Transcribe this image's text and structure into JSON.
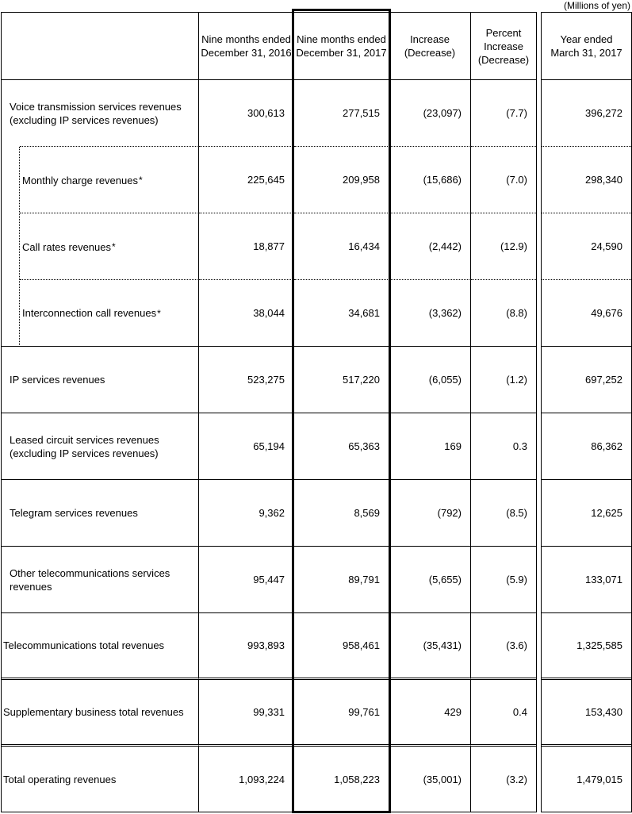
{
  "units_note": "(Millions of yen)",
  "colors": {
    "background": "#ffffff",
    "text": "#000000",
    "border": "#000000"
  },
  "table": {
    "columns": [
      {
        "lines": [
          "Nine months ended",
          "December 31, 2016"
        ]
      },
      {
        "lines": [
          "Nine months ended",
          "December 31, 2017"
        ]
      },
      {
        "lines": [
          "Increase",
          "(Decrease)"
        ]
      },
      {
        "lines": [
          "Percent",
          "Increase",
          "(Decrease)"
        ]
      },
      {
        "lines": [
          "Year ended",
          "March 31, 2017"
        ]
      }
    ],
    "rows": [
      {
        "label": "Voice transmission services revenues (excluding IP services revenues)",
        "values": [
          "300,613",
          "277,515",
          "(23,097)",
          "(7.7)",
          "396,272"
        ]
      },
      {
        "label": "Monthly charge revenues",
        "note": "*",
        "values": [
          "225,645",
          "209,958",
          "(15,686)",
          "(7.0)",
          "298,340"
        ]
      },
      {
        "label": "Call rates revenues",
        "note": "*",
        "values": [
          "18,877",
          "16,434",
          "(2,442)",
          "(12.9)",
          "24,590"
        ]
      },
      {
        "label": "Interconnection call revenues",
        "note": "*",
        "values": [
          "38,044",
          "34,681",
          "(3,362)",
          "(8.8)",
          "49,676"
        ]
      },
      {
        "label": "IP services revenues",
        "values": [
          "523,275",
          "517,220",
          "(6,055)",
          "(1.2)",
          "697,252"
        ]
      },
      {
        "label": "Leased circuit services revenues (excluding IP services revenues)",
        "values": [
          "65,194",
          "65,363",
          "169",
          "0.3",
          "86,362"
        ]
      },
      {
        "label": "Telegram services revenues",
        "values": [
          "9,362",
          "8,569",
          "(792)",
          "(8.5)",
          "12,625"
        ]
      },
      {
        "label": "Other telecommunications services revenues",
        "values": [
          "95,447",
          "89,791",
          "(5,655)",
          "(5.9)",
          "133,071"
        ]
      },
      {
        "label": "Telecommunications total revenues",
        "values": [
          "993,893",
          "958,461",
          "(35,431)",
          "(3.6)",
          "1,325,585"
        ]
      },
      {
        "label": "Supplementary business total revenues",
        "values": [
          "99,331",
          "99,761",
          "429",
          "0.4",
          "153,430"
        ]
      },
      {
        "label": "Total operating revenues",
        "values": [
          "1,093,224",
          "1,058,223",
          "(35,001)",
          "(3.2)",
          "1,479,015"
        ]
      }
    ]
  }
}
